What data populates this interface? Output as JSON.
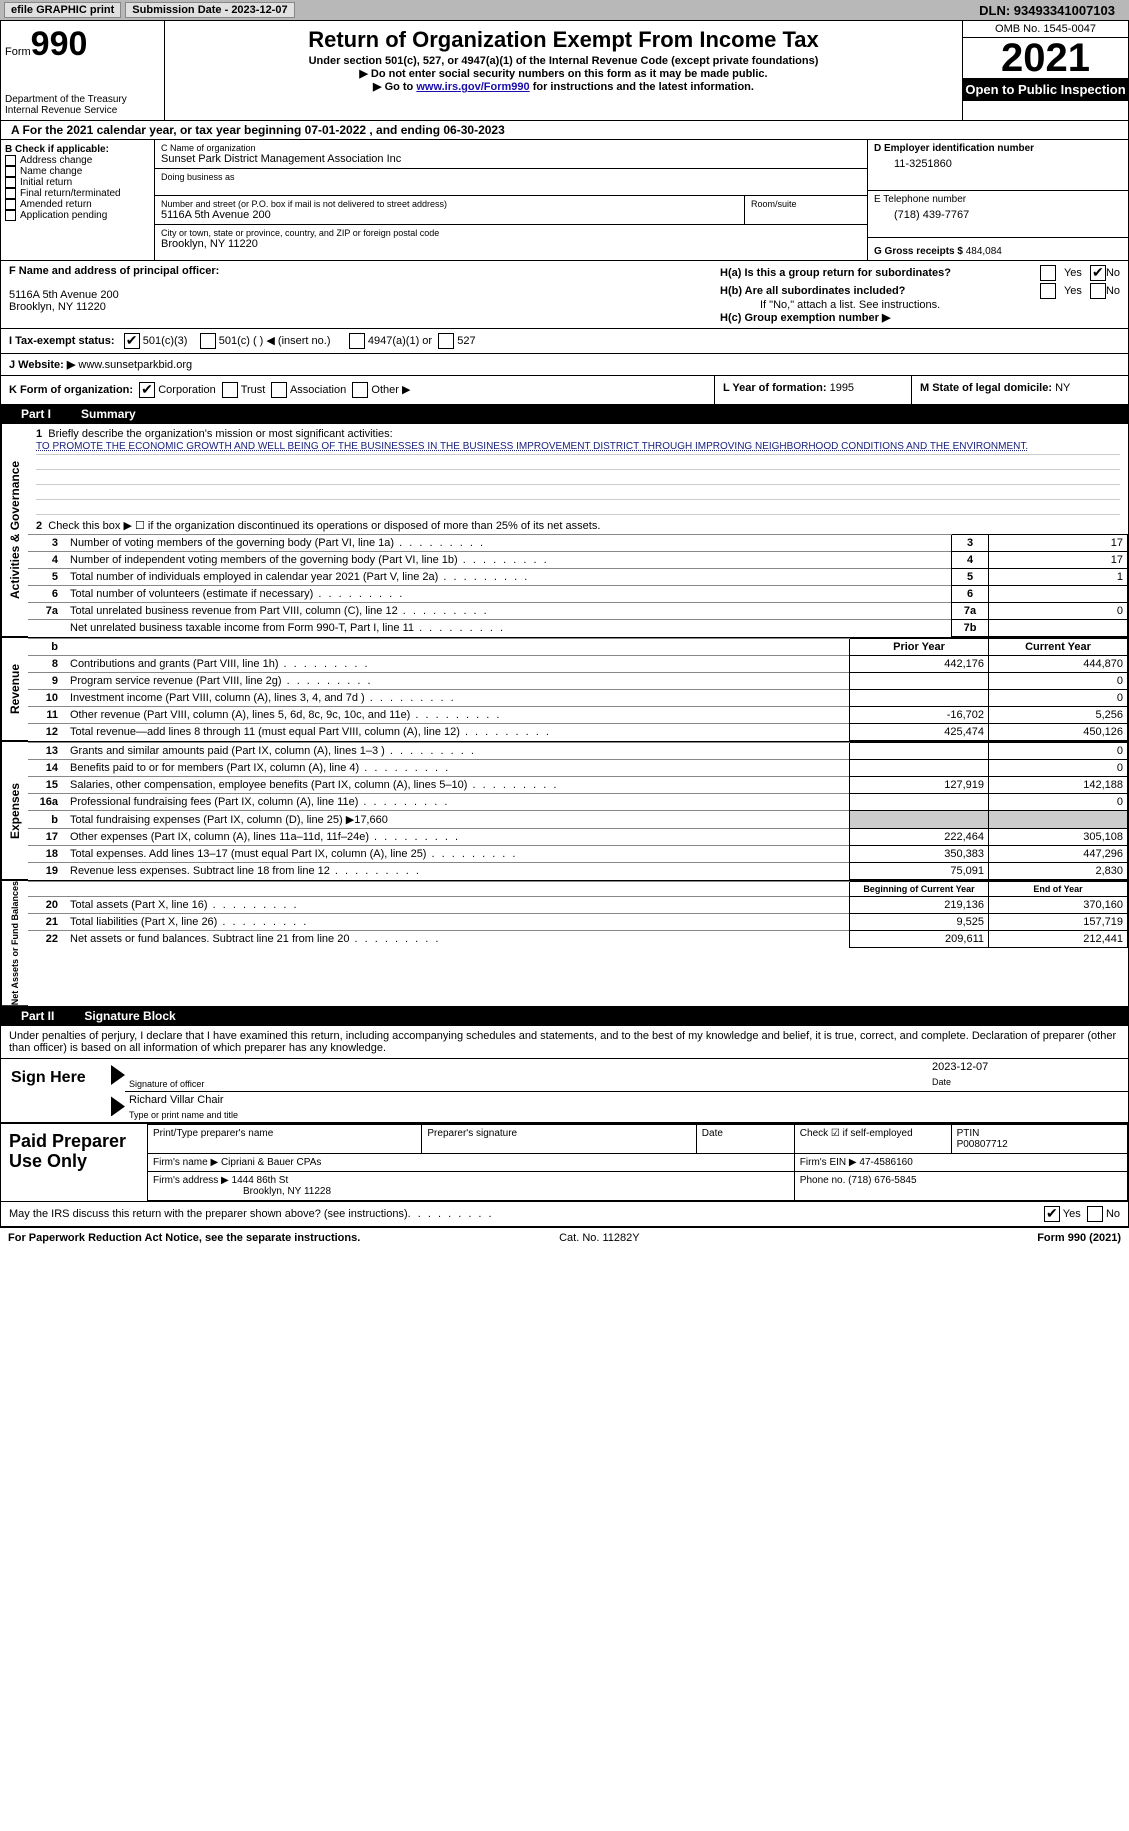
{
  "toolbar": {
    "efile": "efile GRAPHIC print",
    "sub_date_label": "Submission Date - 2023-12-07",
    "dln": "DLN: 93493341007103"
  },
  "header": {
    "form_word": "Form",
    "form_num": "990",
    "title": "Return of Organization Exempt From Income Tax",
    "sub1": "Under section 501(c), 527, or 4947(a)(1) of the Internal Revenue Code (except private foundations)",
    "sub2": "▶ Do not enter social security numbers on this form as it may be made public.",
    "sub3_pre": "▶ Go to ",
    "sub3_link": "www.irs.gov/Form990",
    "sub3_post": " for instructions and the latest information.",
    "dept": "Department of the Treasury Internal Revenue Service",
    "omb": "OMB No. 1545-0047",
    "year": "2021",
    "open_pub": "Open to Public Inspection"
  },
  "row_a": {
    "text": "A For the 2021 calendar year, or tax year beginning 07-01-2022   , and ending 06-30-2023"
  },
  "section_b": {
    "label": "B Check if applicable:",
    "opts": [
      "Address change",
      "Name change",
      "Initial return",
      "Final return/terminated",
      "Amended return",
      "Application pending"
    ],
    "c_name_label": "C Name of organization",
    "c_name": "Sunset Park District Management Association Inc",
    "dba_label": "Doing business as",
    "addr_label": "Number and street (or P.O. box if mail is not delivered to street address)",
    "addr": "5116A 5th Avenue 200",
    "room_label": "Room/suite",
    "city_label": "City or town, state or province, country, and ZIP or foreign postal code",
    "city": "Brooklyn, NY  11220",
    "d_label": "D Employer identification number",
    "d_val": "11-3251860",
    "e_label": "E Telephone number",
    "e_val": "(718) 439-7767",
    "g_label": "G Gross receipts $",
    "g_val": "484,084"
  },
  "row_f": {
    "f_label": "F  Name and address of principal officer:",
    "f_addr1": "5116A 5th Avenue 200",
    "f_addr2": "Brooklyn, NY  11220",
    "ha": "H(a)  Is this a group return for subordinates?",
    "hb": "H(b)  Are all subordinates included?",
    "hb_note": "If \"No,\" attach a list. See instructions.",
    "hc": "H(c)  Group exemption number ▶",
    "yes": "Yes",
    "no": "No"
  },
  "row_i": {
    "label": "I   Tax-exempt status:",
    "o1": "501(c)(3)",
    "o2": "501(c) (  ) ◀ (insert no.)",
    "o3": "4947(a)(1) or",
    "o4": "527"
  },
  "row_j": {
    "label": "J   Website: ▶",
    "val": "  www.sunsetparkbid.org"
  },
  "row_k": {
    "label": "K Form of organization:",
    "o1": "Corporation",
    "o2": "Trust",
    "o3": "Association",
    "o4": "Other ▶",
    "l_label": "L Year of formation:",
    "l_val": "1995",
    "m_label": "M State of legal domicile:",
    "m_val": "NY"
  },
  "part1": {
    "header": "Part I",
    "title": "Summary",
    "q1": "Briefly describe the organization's mission or most significant activities:",
    "mission": "TO PROMOTE THE ECONOMIC GROWTH AND WELL BEING OF THE BUSINESSES IN THE BUSINESS IMPROVEMENT DISTRICT THROUGH IMPROVING NEIGHBORHOOD CONDITIONS AND THE ENVIRONMENT.",
    "q2": "Check this box ▶ ☐  if the organization discontinued its operations or disposed of more than 25% of its net assets.",
    "lines": [
      {
        "n": "3",
        "t": "Number of voting members of the governing body (Part VI, line 1a)",
        "box": "3",
        "v": "17"
      },
      {
        "n": "4",
        "t": "Number of independent voting members of the governing body (Part VI, line 1b)",
        "box": "4",
        "v": "17"
      },
      {
        "n": "5",
        "t": "Total number of individuals employed in calendar year 2021 (Part V, line 2a)",
        "box": "5",
        "v": "1"
      },
      {
        "n": "6",
        "t": "Total number of volunteers (estimate if necessary)",
        "box": "6",
        "v": ""
      },
      {
        "n": "7a",
        "t": "Total unrelated business revenue from Part VIII, column (C), line 12",
        "box": "7a",
        "v": "0"
      },
      {
        "n": "",
        "t": "Net unrelated business taxable income from Form 990-T, Part I, line 11",
        "box": "7b",
        "v": ""
      }
    ],
    "rev_header_prior": "Prior Year",
    "rev_header_cur": "Current Year",
    "rev_lines": [
      {
        "n": "8",
        "t": "Contributions and grants (Part VIII, line 1h)",
        "p": "442,176",
        "c": "444,870"
      },
      {
        "n": "9",
        "t": "Program service revenue (Part VIII, line 2g)",
        "p": "",
        "c": "0"
      },
      {
        "n": "10",
        "t": "Investment income (Part VIII, column (A), lines 3, 4, and 7d )",
        "p": "",
        "c": "0"
      },
      {
        "n": "11",
        "t": "Other revenue (Part VIII, column (A), lines 5, 6d, 8c, 9c, 10c, and 11e)",
        "p": "-16,702",
        "c": "5,256"
      },
      {
        "n": "12",
        "t": "Total revenue—add lines 8 through 11 (must equal Part VIII, column (A), line 12)",
        "p": "425,474",
        "c": "450,126"
      }
    ],
    "exp_lines": [
      {
        "n": "13",
        "t": "Grants and similar amounts paid (Part IX, column (A), lines 1–3 )",
        "p": "",
        "c": "0"
      },
      {
        "n": "14",
        "t": "Benefits paid to or for members (Part IX, column (A), line 4)",
        "p": "",
        "c": "0"
      },
      {
        "n": "15",
        "t": "Salaries, other compensation, employee benefits (Part IX, column (A), lines 5–10)",
        "p": "127,919",
        "c": "142,188"
      },
      {
        "n": "16a",
        "t": "Professional fundraising fees (Part IX, column (A), line 11e)",
        "p": "",
        "c": "0"
      },
      {
        "n": "b",
        "t": "Total fundraising expenses (Part IX, column (D), line 25) ▶17,660",
        "p": "SHADE",
        "c": "SHADE"
      },
      {
        "n": "17",
        "t": "Other expenses (Part IX, column (A), lines 11a–11d, 11f–24e)",
        "p": "222,464",
        "c": "305,108"
      },
      {
        "n": "18",
        "t": "Total expenses. Add lines 13–17 (must equal Part IX, column (A), line 25)",
        "p": "350,383",
        "c": "447,296"
      },
      {
        "n": "19",
        "t": "Revenue less expenses. Subtract line 18 from line 12",
        "p": "75,091",
        "c": "2,830"
      }
    ],
    "na_header_begin": "Beginning of Current Year",
    "na_header_end": "End of Year",
    "na_lines": [
      {
        "n": "20",
        "t": "Total assets (Part X, line 16)",
        "p": "219,136",
        "c": "370,160"
      },
      {
        "n": "21",
        "t": "Total liabilities (Part X, line 26)",
        "p": "9,525",
        "c": "157,719"
      },
      {
        "n": "22",
        "t": "Net assets or fund balances. Subtract line 21 from line 20",
        "p": "209,611",
        "c": "212,441"
      }
    ],
    "side_gov": "Activities & Governance",
    "side_rev": "Revenue",
    "side_exp": "Expenses",
    "side_na": "Net Assets or Fund Balances"
  },
  "part2": {
    "header": "Part II",
    "title": "Signature Block",
    "decl": "Under penalties of perjury, I declare that I have examined this return, including accompanying schedules and statements, and to the best of my knowledge and belief, it is true, correct, and complete. Declaration of preparer (other than officer) is based on all information of which preparer has any knowledge.",
    "sign_here": "Sign Here",
    "sig_officer": "Signature of officer",
    "date": "Date",
    "date_val": "2023-12-07",
    "name_title": "Richard Villar Chair",
    "name_title_label": "Type or print name and title",
    "paid": "Paid Preparer Use Only",
    "print_name": "Print/Type preparer's name",
    "prep_sig": "Preparer's signature",
    "check_if": "Check ☑ if self-employed",
    "ptin_label": "PTIN",
    "ptin": "P00807712",
    "firm_name_label": "Firm's name    ▶",
    "firm_name": "Cipriani & Bauer CPAs",
    "firm_ein_label": "Firm's EIN ▶",
    "firm_ein": "47-4586160",
    "firm_addr_label": "Firm's address ▶",
    "firm_addr1": "1444 86th St",
    "firm_addr2": "Brooklyn, NY  11228",
    "phone_label": "Phone no.",
    "phone": "(718) 676-5845",
    "may_discuss": "May the IRS discuss this return with the preparer shown above? (see instructions)",
    "paperwork": "For Paperwork Reduction Act Notice, see the separate instructions.",
    "cat": "Cat. No. 11282Y",
    "form_foot": "Form 990 (2021)"
  }
}
